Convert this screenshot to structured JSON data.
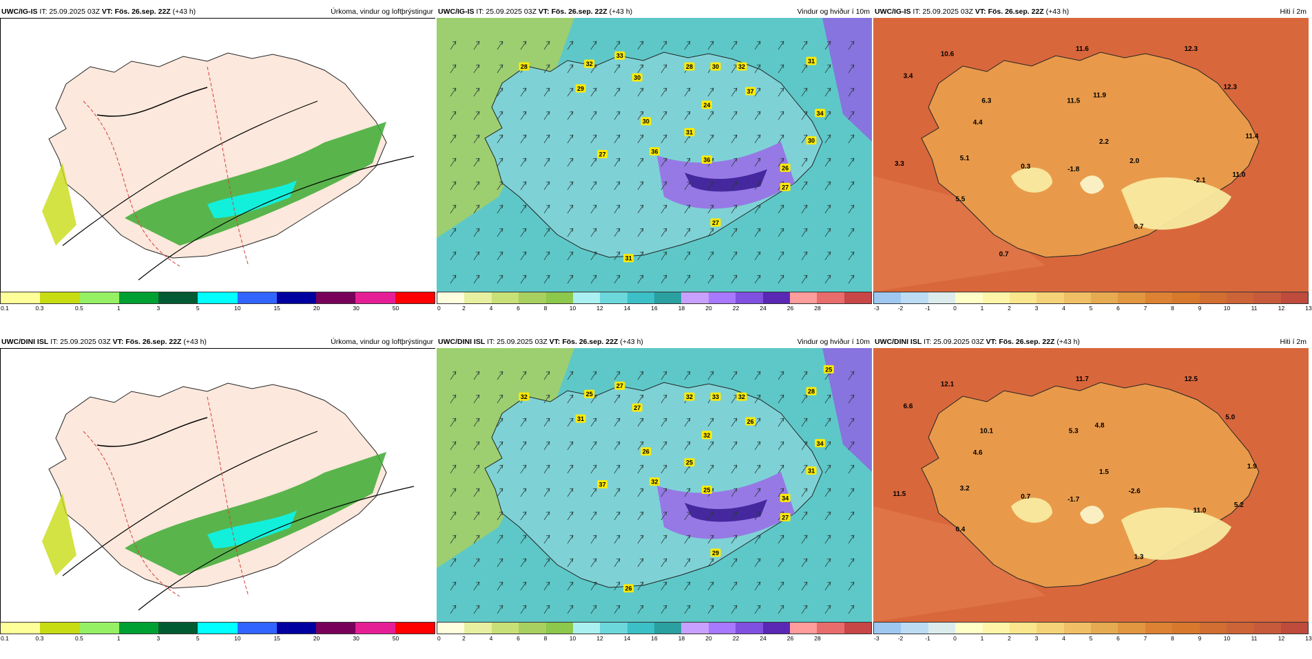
{
  "rows": [
    {
      "model": "UWC/IG-IS",
      "it_text": " IT: 25.09.2025 03Z ",
      "vt_label": "VT: Fös. 26.sep. 22Z",
      "lead": " (+43 h)",
      "panels": {
        "precip": {
          "title_right": "Úrkoma, vindur og loftþrýstingur"
        },
        "wind": {
          "title_right": "Vindur og hviður í 10m",
          "labels": [
            "28",
            "32",
            "33",
            "30",
            "28",
            "30",
            "32",
            "31",
            "29",
            "27",
            "24",
            "37",
            "30",
            "31",
            "36",
            "34",
            "36",
            "30",
            "27",
            "26",
            "27",
            "31"
          ]
        },
        "temp": {
          "title_right": "Hiti í 2m",
          "labels": [
            "10.6",
            "3.4",
            "6.3",
            "11.6",
            "12.3",
            "11.5",
            "11.9",
            "12.3",
            "4.4",
            "2.2",
            "11.4",
            "3.3",
            "5.1",
            "0.3",
            "-1.8",
            "2.0",
            "-2.1",
            "11.0",
            "5.5",
            "0.7",
            "0.7"
          ]
        }
      }
    },
    {
      "model": "UWC/DINI ISL",
      "it_text": " IT: 25.09.2025 03Z ",
      "vt_label": "VT: Fös. 26.sep. 22Z",
      "lead": " (+43 h)",
      "panels": {
        "precip": {
          "title_right": "Úrkoma, vindur og loftþrýstingur"
        },
        "wind": {
          "title_right": "Vindur og hviður í 10m",
          "labels": [
            "32",
            "25",
            "27",
            "27",
            "32",
            "33",
            "32",
            "28",
            "31",
            "37",
            "32",
            "26",
            "26",
            "25",
            "32",
            "34",
            "25",
            "31",
            "27",
            "34",
            "29",
            "26",
            "25"
          ]
        },
        "temp": {
          "title_right": "Hiti í 2m",
          "labels": [
            "12.1",
            "6.6",
            "10.1",
            "11.7",
            "12.5",
            "5.3",
            "4.8",
            "5.0",
            "4.6",
            "1.5",
            "1.9",
            "11.5",
            "3.2",
            "0.7",
            "-1.7",
            "-2.6",
            "11.0",
            "5.2",
            "0.4",
            "1.3"
          ]
        }
      }
    }
  ],
  "scales": {
    "precip": {
      "colors": [
        "#ffff99",
        "#c8dc14",
        "#96f064",
        "#00a032",
        "#005a32",
        "#00ffff",
        "#3264ff",
        "#0000a0",
        "#78005a",
        "#e61e96",
        "#ff0000"
      ],
      "ticks": [
        "0.1",
        "0.3",
        "0.5",
        "1",
        "3",
        "5",
        "10",
        "15",
        "20",
        "30",
        "50"
      ]
    },
    "wind": {
      "colors": [
        "#ffffe0",
        "#e6f0a0",
        "#c8e078",
        "#a8d060",
        "#8cc84c",
        "#aaf0f0",
        "#6cd8dc",
        "#3cc0c8",
        "#2aa0a0",
        "#c8a0ff",
        "#a878ff",
        "#8050e0",
        "#5a28b4",
        "#ff9c9c",
        "#e86c6c",
        "#c84646"
      ],
      "ticks": [
        "0",
        "2",
        "4",
        "6",
        "8",
        "10",
        "12",
        "14",
        "16",
        "18",
        "20",
        "22",
        "24",
        "26",
        "28"
      ]
    },
    "temp": {
      "colors": [
        "#9ec8f0",
        "#bcdcf4",
        "#dcecec",
        "#ffffc8",
        "#fff5a8",
        "#fae68c",
        "#f5d278",
        "#f0be64",
        "#e6aa50",
        "#e19640",
        "#dc8232",
        "#d7782d",
        "#d26e32",
        "#cd6437",
        "#c85a3c",
        "#be4b3c"
      ],
      "ticks": [
        "-3",
        "-2",
        "-1",
        "0",
        "1",
        "2",
        "3",
        "4",
        "5",
        "6",
        "7",
        "8",
        "9",
        "10",
        "11",
        "12",
        "13"
      ]
    }
  }
}
